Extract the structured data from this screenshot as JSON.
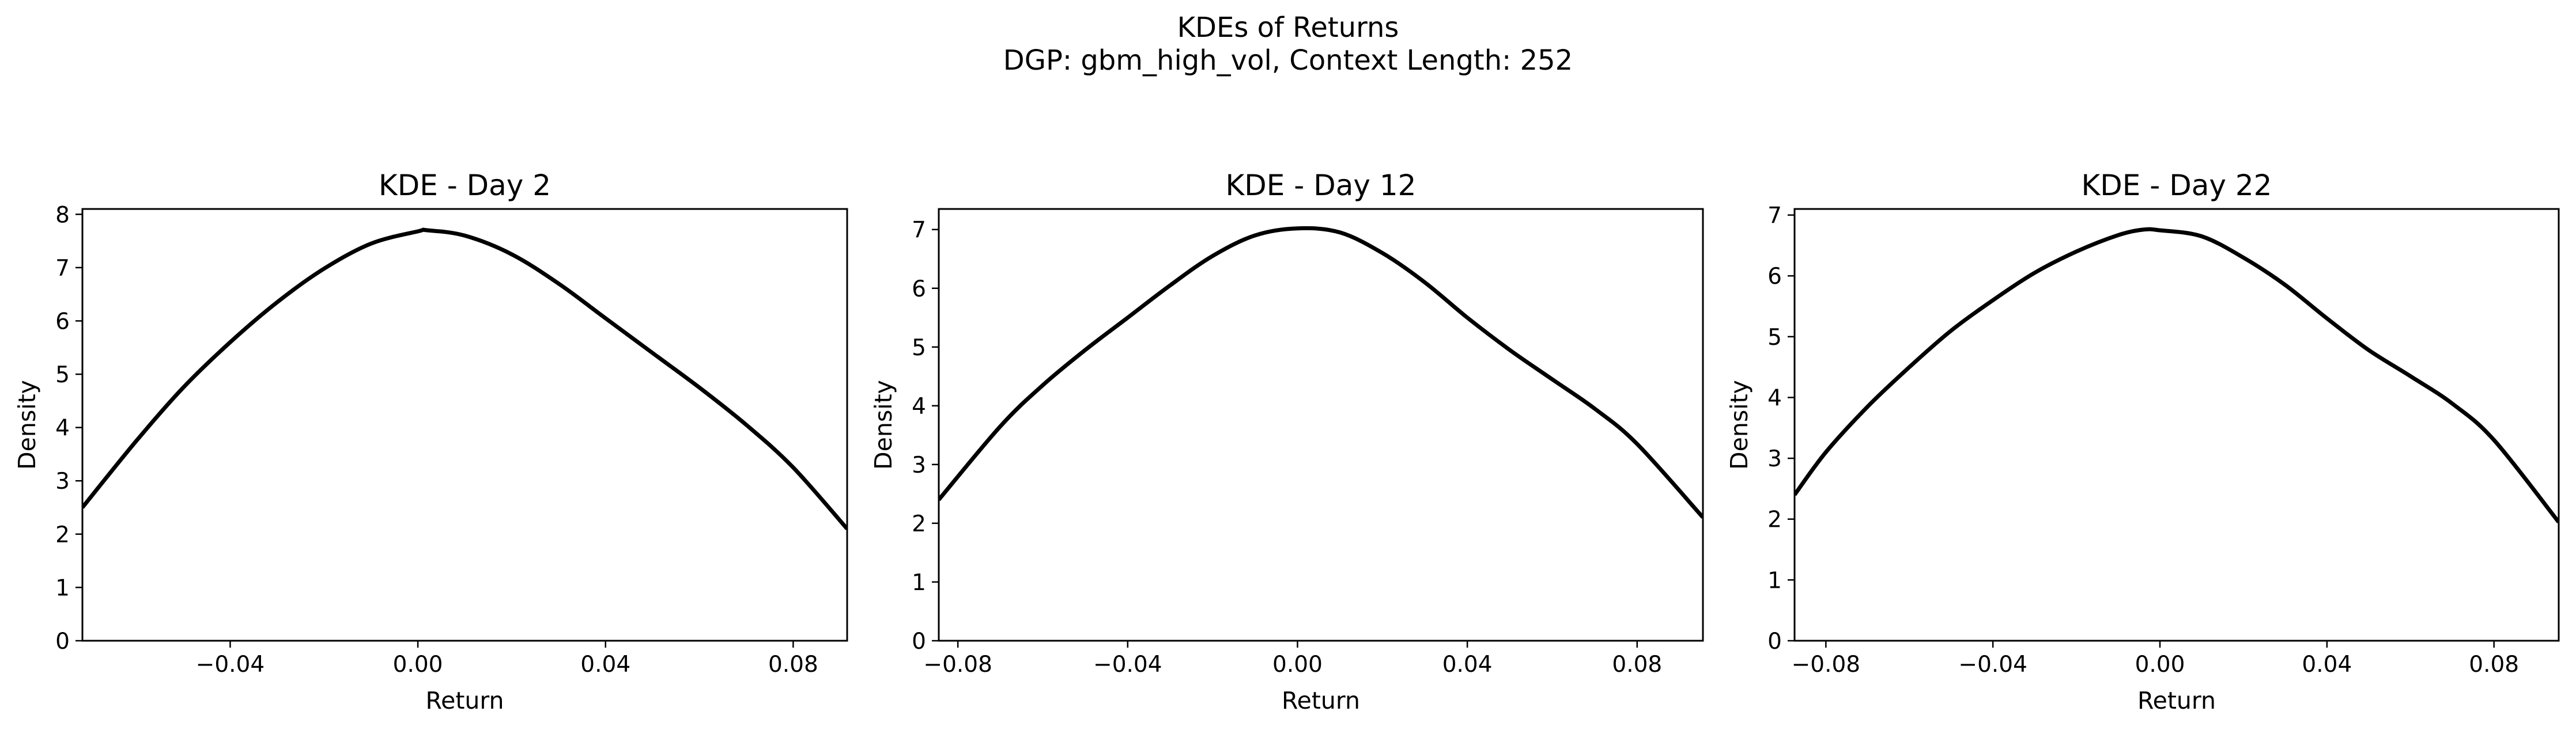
{
  "figure": {
    "title_line1": "KDEs of Returns",
    "title_line2": "DGP: gbm_high_vol, Context Length: 252"
  },
  "chart_data": [
    {
      "type": "line",
      "title": "KDE - Day 2",
      "xlabel": "Return",
      "ylabel": "Density",
      "xlim": [
        -0.0715,
        0.0915
      ],
      "ylim": [
        0,
        8.1
      ],
      "xticks": [
        -0.04,
        0.0,
        0.04,
        0.08
      ],
      "xtick_labels": [
        "−0.04",
        "0.00",
        "0.04",
        "0.08"
      ],
      "yticks": [
        0,
        1,
        2,
        3,
        4,
        5,
        6,
        7,
        8
      ],
      "ytick_labels": [
        "0",
        "1",
        "2",
        "3",
        "4",
        "5",
        "6",
        "7",
        "8"
      ],
      "line_color": "#000000",
      "x": [
        -0.0715,
        -0.06,
        -0.05,
        -0.04,
        -0.03,
        -0.02,
        -0.01,
        0.0,
        0.002,
        0.01,
        0.02,
        0.03,
        0.04,
        0.05,
        0.06,
        0.07,
        0.08,
        0.0915
      ],
      "y": [
        2.5,
        3.75,
        4.75,
        5.6,
        6.35,
        6.98,
        7.45,
        7.68,
        7.7,
        7.6,
        7.25,
        6.7,
        6.05,
        5.4,
        4.75,
        4.05,
        3.25,
        2.1
      ]
    },
    {
      "type": "line",
      "title": "KDE - Day 12",
      "xlabel": "Return",
      "ylabel": "Density",
      "xlim": [
        -0.0845,
        0.0955
      ],
      "ylim": [
        0,
        7.35
      ],
      "xticks": [
        -0.08,
        -0.04,
        0.0,
        0.04,
        0.08
      ],
      "xtick_labels": [
        "−0.08",
        "−0.04",
        "0.00",
        "0.04",
        "0.08"
      ],
      "yticks": [
        0,
        1,
        2,
        3,
        4,
        5,
        6,
        7
      ],
      "ytick_labels": [
        "0",
        "1",
        "2",
        "3",
        "4",
        "5",
        "6",
        "7"
      ],
      "line_color": "#000000",
      "x": [
        -0.0845,
        -0.07,
        -0.06,
        -0.05,
        -0.04,
        -0.03,
        -0.02,
        -0.01,
        0.0,
        0.01,
        0.02,
        0.03,
        0.04,
        0.05,
        0.06,
        0.07,
        0.08,
        0.0955
      ],
      "y": [
        2.4,
        3.65,
        4.35,
        4.95,
        5.5,
        6.05,
        6.55,
        6.9,
        7.02,
        6.95,
        6.6,
        6.1,
        5.5,
        4.95,
        4.45,
        3.95,
        3.35,
        2.1
      ]
    },
    {
      "type": "line",
      "title": "KDE - Day 22",
      "xlabel": "Return",
      "ylabel": "Density",
      "xlim": [
        -0.0875,
        0.0955
      ],
      "ylim": [
        0,
        7.1
      ],
      "xticks": [
        -0.08,
        -0.04,
        0.0,
        0.04,
        0.08
      ],
      "xtick_labels": [
        "−0.08",
        "−0.04",
        "0.00",
        "0.04",
        "0.08"
      ],
      "yticks": [
        0,
        1,
        2,
        3,
        4,
        5,
        6,
        7
      ],
      "ytick_labels": [
        "0",
        "1",
        "2",
        "3",
        "4",
        "5",
        "6",
        "7"
      ],
      "line_color": "#000000",
      "x": [
        -0.0875,
        -0.08,
        -0.07,
        -0.06,
        -0.05,
        -0.04,
        -0.03,
        -0.02,
        -0.01,
        -0.004,
        0.0,
        0.01,
        0.02,
        0.03,
        0.04,
        0.05,
        0.06,
        0.07,
        0.08,
        0.0955
      ],
      "y": [
        2.4,
        3.1,
        3.85,
        4.5,
        5.1,
        5.6,
        6.05,
        6.4,
        6.67,
        6.76,
        6.75,
        6.65,
        6.3,
        5.85,
        5.3,
        4.78,
        4.35,
        3.9,
        3.3,
        1.95
      ]
    }
  ]
}
